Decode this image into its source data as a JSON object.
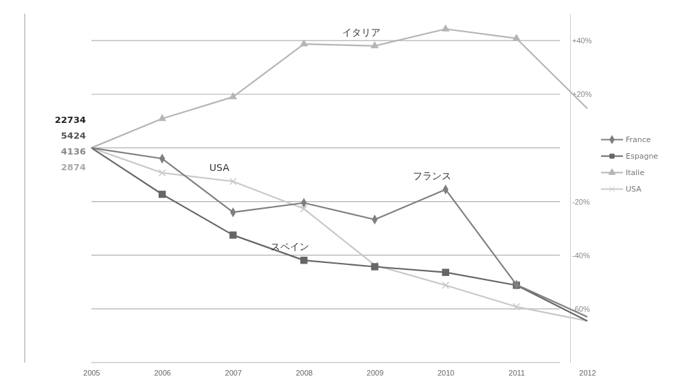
{
  "chart_data": {
    "type": "line",
    "categories": [
      "2005",
      "2006",
      "2007",
      "2008",
      "2009",
      "2010",
      "2011",
      "2012"
    ],
    "series": [
      {
        "name": "France",
        "color": "#7f7f7f",
        "marker": "diamond",
        "values": [
          0,
          -4,
          -24,
          -20.5,
          -26.7,
          -15.5,
          -51,
          -63
        ]
      },
      {
        "name": "Espagne",
        "color": "#666666",
        "marker": "square",
        "values": [
          0,
          -17.3,
          -32.5,
          -41.9,
          -44.3,
          -46.4,
          -51.2,
          -64.5
        ]
      },
      {
        "name": "Italie",
        "color": "#b5b5b5",
        "marker": "triangle",
        "values": [
          0,
          10.9,
          19,
          38.7,
          38,
          44.3,
          40.8,
          14.7
        ]
      },
      {
        "name": "USA",
        "color": "#c8c8c8",
        "marker": "cross",
        "values": [
          0,
          -9.3,
          -12.5,
          -22.7,
          -43.7,
          -51.2,
          -59.2,
          -64.5
        ]
      }
    ],
    "ylim": [
      -80,
      50
    ],
    "yticks": [
      {
        "value": -80,
        "label": null
      },
      {
        "value": -60,
        "label": "-60%"
      },
      {
        "value": -40,
        "label": "-40%"
      },
      {
        "value": -20,
        "label": "-20%"
      },
      {
        "value": 0,
        "label": null
      },
      {
        "value": 20,
        "label": "+20%"
      },
      {
        "value": 40,
        "label": "+40%"
      }
    ],
    "grid": "y",
    "legend": "right",
    "annotations": [
      "22734",
      "5424",
      "4136",
      "2874",
      {
        "text": "イタリア",
        "x": "2009",
        "y": 38
      },
      {
        "text": "USA",
        "x": "2007",
        "y": -12.5
      },
      {
        "text": "フランス",
        "x": "2010",
        "y": -15.5
      },
      {
        "text": "スペイン",
        "x": "2008",
        "y": -41.9
      }
    ]
  }
}
